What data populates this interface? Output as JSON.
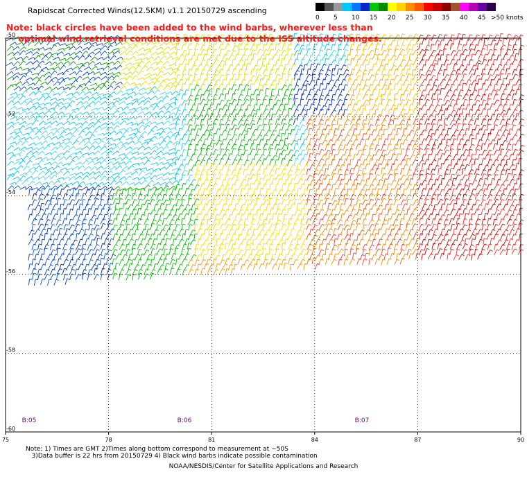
{
  "title": "Rapidscat Corrected Winds(12.5KM) v1.1 20150729 ascending",
  "note_line1": "Note: black circles have been added to the wind barbs, wherever less than",
  "note_line2": "optimal wind retrieval conditions are met due to the ISS altitude changes.",
  "legend": {
    "unit_label": ">50 knots",
    "labels": [
      "0",
      "5",
      "10",
      "15",
      "20",
      "25",
      "30",
      "35",
      "40",
      "45"
    ],
    "colors": [
      "#000000",
      "#555555",
      "#999999",
      "#00c8ff",
      "#0078ff",
      "#0028c8",
      "#00c800",
      "#008c00",
      "#ffff00",
      "#ffd200",
      "#ff8c00",
      "#ff5a00",
      "#ff0000",
      "#c80000",
      "#8c0000",
      "#a0522d",
      "#ff00ff",
      "#b400b4",
      "#6400a0",
      "#280046"
    ]
  },
  "axes": {
    "x_ticks": [
      "75",
      "78",
      "81",
      "84",
      "87",
      "90"
    ],
    "y_ticks": [
      "-50",
      "-52",
      "-54",
      "-56",
      "-58",
      "-60"
    ]
  },
  "times": [
    "B:05",
    "B:06",
    "B:07"
  ],
  "footnote": "Note: 1) Times are GMT 2)Times along bottom correspond to measurement at ~50S\n   3)Data buffer is 22 hrs from 20150729 4) Black wind barbs indicate possible contamination",
  "credit": "NOAA/NESDIS/Center for Satellite Applications and Research"
}
